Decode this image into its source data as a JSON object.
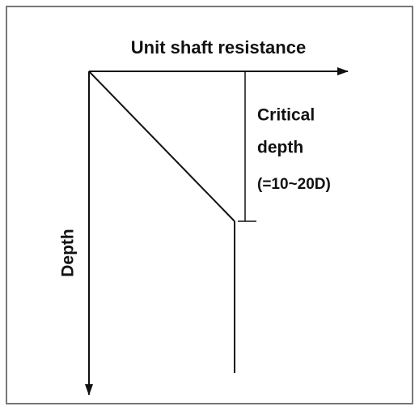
{
  "diagram": {
    "x_axis_label": "Unit shaft resistance",
    "y_axis_label": "Depth",
    "critical_depth": {
      "lines": [
        "Critical",
        "depth"
      ],
      "range": "(=10~20D)"
    }
  }
}
